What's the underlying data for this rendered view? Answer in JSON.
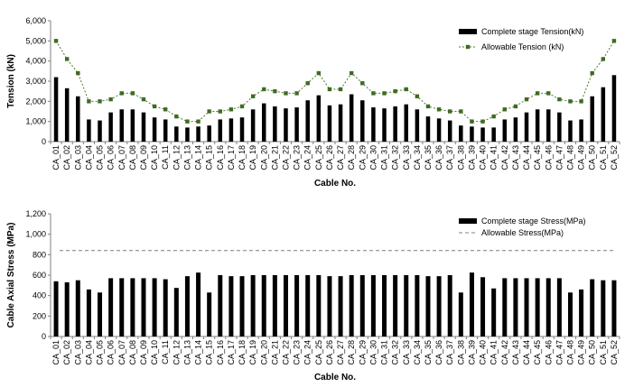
{
  "chart_data": [
    {
      "type": "bar",
      "categories": [
        "CA_01",
        "CA_02",
        "CA_03",
        "CA_04",
        "CA_05",
        "CA_06",
        "CA_07",
        "CA_08",
        "CA_09",
        "CA_10",
        "CA_11",
        "CA_12",
        "CA_13",
        "CA_14",
        "CA_15",
        "CA_16",
        "CA_17",
        "CA_18",
        "CA_19",
        "CA_20",
        "CA_21",
        "CA_22",
        "CA_23",
        "CA_24",
        "CA_25",
        "CA_26",
        "CA_27",
        "CA_28",
        "CA_29",
        "CA_30",
        "CA_31",
        "CA_32",
        "CA_33",
        "CA_34",
        "CA_35",
        "CA_36",
        "CA_37",
        "CA_38",
        "CA_39",
        "CA_40",
        "CA_41",
        "CA_42",
        "CA_43",
        "CA_44",
        "CA_45",
        "CA_46",
        "CA_47",
        "CA_48",
        "CA_49",
        "CA_50",
        "CA_51",
        "CA_52"
      ],
      "series": [
        {
          "name": "Complete stage Tension(kN)",
          "kind": "bar",
          "values": [
            3200,
            2650,
            2250,
            1100,
            1050,
            1450,
            1600,
            1600,
            1450,
            1200,
            1100,
            750,
            700,
            750,
            800,
            1100,
            1150,
            1200,
            1600,
            1900,
            1750,
            1650,
            1700,
            2050,
            2300,
            1800,
            1850,
            2350,
            2050,
            1700,
            1650,
            1750,
            1850,
            1600,
            1250,
            1150,
            1050,
            800,
            750,
            700,
            700,
            1100,
            1200,
            1450,
            1600,
            1600,
            1450,
            1050,
            1100,
            2250,
            2700,
            3300
          ]
        },
        {
          "name": "Allowable Tension (kN)",
          "kind": "line",
          "values": [
            5000,
            4100,
            3400,
            2000,
            2000,
            2100,
            2400,
            2400,
            2100,
            1750,
            1600,
            1250,
            1000,
            1000,
            1500,
            1500,
            1600,
            1750,
            2250,
            2600,
            2500,
            2400,
            2400,
            2900,
            3400,
            2600,
            2600,
            3400,
            2900,
            2400,
            2400,
            2500,
            2600,
            2250,
            1750,
            1600,
            1500,
            1500,
            1000,
            1000,
            1250,
            1600,
            1750,
            2100,
            2400,
            2400,
            2100,
            2000,
            2000,
            3400,
            4100,
            5000
          ]
        }
      ],
      "xlabel": "Cable No.",
      "ylabel": "Tension (kN)",
      "ylim": [
        0,
        6000
      ],
      "yticks": [
        "0",
        "1,000",
        "2,000",
        "3,000",
        "4,000",
        "5,000",
        "6,000"
      ],
      "legend": "top-right",
      "grid": false
    },
    {
      "type": "bar",
      "categories": [
        "CA_01",
        "CA_02",
        "CA_03",
        "CA_04",
        "CA_05",
        "CA_06",
        "CA_07",
        "CA_08",
        "CA_09",
        "CA_10",
        "CA_11",
        "CA_12",
        "CA_13",
        "CA_14",
        "CA_15",
        "CA_16",
        "CA_17",
        "CA_18",
        "CA_19",
        "CA_20",
        "CA_21",
        "CA_22",
        "CA_23",
        "CA_24",
        "CA_25",
        "CA_26",
        "CA_27",
        "CA_28",
        "CA_29",
        "CA_30",
        "CA_31",
        "CA_32",
        "CA_33",
        "CA_34",
        "CA_35",
        "CA_36",
        "CA_37",
        "CA_38",
        "CA_39",
        "CA_40",
        "CA_41",
        "CA_42",
        "CA_43",
        "CA_44",
        "CA_45",
        "CA_46",
        "CA_47",
        "CA_48",
        "CA_49",
        "CA_50",
        "CA_51",
        "CA_52"
      ],
      "series": [
        {
          "name": "Complete stage Stress(MPa)",
          "kind": "bar",
          "values": [
            540,
            530,
            550,
            460,
            430,
            570,
            570,
            570,
            570,
            570,
            560,
            475,
            590,
            625,
            430,
            600,
            590,
            590,
            600,
            600,
            600,
            600,
            600,
            600,
            600,
            590,
            590,
            600,
            600,
            600,
            600,
            600,
            600,
            600,
            590,
            590,
            600,
            430,
            625,
            580,
            470,
            570,
            570,
            570,
            570,
            570,
            570,
            430,
            460,
            560,
            550,
            550
          ]
        },
        {
          "name": "Allowable Stress(MPa)",
          "kind": "dashed-line",
          "values": [
            840,
            840,
            840,
            840,
            840,
            840,
            840,
            840,
            840,
            840,
            840,
            840,
            840,
            840,
            840,
            840,
            840,
            840,
            840,
            840,
            840,
            840,
            840,
            840,
            840,
            840,
            840,
            840,
            840,
            840,
            840,
            840,
            840,
            840,
            840,
            840,
            840,
            840,
            840,
            840,
            840,
            840,
            840,
            840,
            840,
            840,
            840,
            840,
            840,
            840,
            840,
            840
          ]
        }
      ],
      "xlabel": "Cable No.",
      "ylabel": "Cable Axial Stress (MPa)",
      "ylim": [
        0,
        1200
      ],
      "yticks": [
        "0",
        "200",
        "400",
        "600",
        "800",
        "1,000",
        "1,200"
      ],
      "legend": "top-right",
      "grid": false
    }
  ],
  "colors": {
    "bar": "#000000",
    "line": "#4d7a2f",
    "marker": "#3e6b22",
    "dashed": "#7f7f7f",
    "axis": "#808080"
  }
}
